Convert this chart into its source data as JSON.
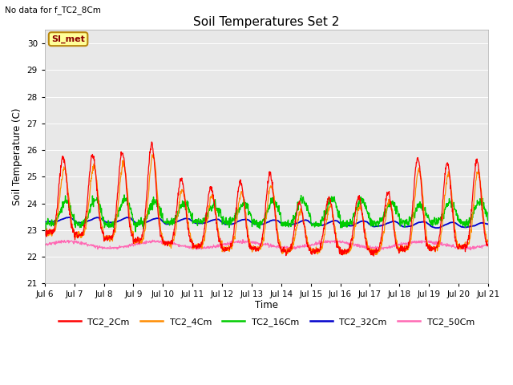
{
  "title": "Soil Temperatures Set 2",
  "subtitle": "No data for f_TC2_8Cm",
  "xlabel": "Time",
  "ylabel": "Soil Temperature (C)",
  "ylim": [
    21.0,
    30.5
  ],
  "yticks": [
    21.0,
    22.0,
    23.0,
    24.0,
    25.0,
    26.0,
    27.0,
    28.0,
    29.0,
    30.0
  ],
  "colors": {
    "TC2_2Cm": "#FF0000",
    "TC2_4Cm": "#FF8C00",
    "TC2_16Cm": "#00CC00",
    "TC2_32Cm": "#0000CC",
    "TC2_50Cm": "#FF69B4"
  },
  "bg_color": "#FFFFFF",
  "plot_bg": "#E8E8E8",
  "x_tick_labels": [
    "Jul 6",
    "Jul 7",
    "Jul 8",
    "Jul 9",
    "Jul 10",
    "Jul 11",
    "Jul 12",
    "Jul 13",
    "Jul 14",
    "Jul 15",
    "Jul 16",
    "Jul 17",
    "Jul 18",
    "Jul 19",
    "Jul 20",
    "Jul 21"
  ]
}
